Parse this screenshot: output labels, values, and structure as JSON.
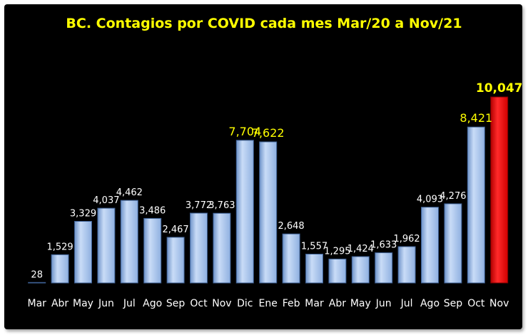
{
  "chart_data": {
    "type": "bar",
    "title": "BC. Contagios por COVID cada mes Mar/20 a Nov/21",
    "categories": [
      "Mar",
      "Abr",
      "May",
      "Jun",
      "Jul",
      "Ago",
      "Sep",
      "Oct",
      "Nov",
      "Dic",
      "Ene",
      "Feb",
      "Mar",
      "Abr",
      "May",
      "Jun",
      "Jul",
      "Ago",
      "Sep",
      "Oct",
      "Nov"
    ],
    "values": [
      28,
      1529,
      3329,
      4037,
      4462,
      3486,
      2467,
      3772,
      3763,
      7704,
      7622,
      2648,
      1557,
      1295,
      1424,
      1633,
      1962,
      4093,
      4276,
      8421,
      10047
    ],
    "labels": [
      "28",
      "1,529",
      "3,329",
      "4,037",
      "4,462",
      "3,486",
      "2,467",
      "3,772",
      "3,763",
      "7,704",
      "7,622",
      "2,648",
      "1,557",
      "1,295",
      "1,424",
      "1,633",
      "1,962",
      "4,093",
      "4,276",
      "8,421",
      "10,047"
    ],
    "highlight_label_indices": [
      9,
      10,
      19
    ],
    "max_index": 20,
    "ylim": [
      0,
      11200
    ],
    "grid": false,
    "legend": "none",
    "colors": {
      "background": "#000000",
      "bar": "#a9c6ef",
      "bar_highlight": "#ff0000",
      "title": "#ffff00",
      "label": "#ffffff",
      "label_highlight": "#ffff00"
    }
  }
}
